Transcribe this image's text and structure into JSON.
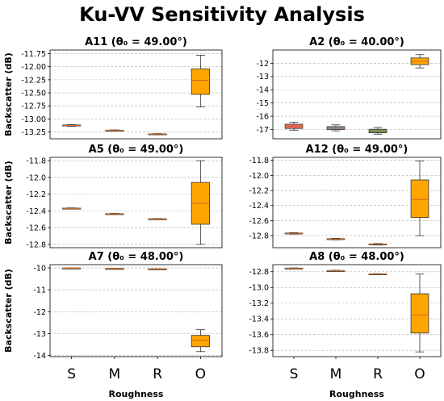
{
  "title": "Ku-VV Sensitivity Analysis",
  "colors": {
    "orange": "#FFA500",
    "red": "#E8676A",
    "blue": "#7091C9",
    "green": "#5E9D6A",
    "median_line": "#D2691E",
    "grid": "#B0B0B0"
  },
  "chart_data": [
    {
      "type": "box",
      "title": "A11 (θ₀ = 49.00°)",
      "ylabel": "Backscatter (dB)",
      "xlabel": "",
      "categories": [
        "S",
        "M",
        "R",
        "O"
      ],
      "ylim": [
        -13.38,
        -11.68
      ],
      "yticks": [
        -13.25,
        -13.0,
        -12.75,
        -12.5,
        -12.25,
        -12.0,
        -11.75
      ],
      "ytick_labels": [
        "-13.25",
        "-13.00",
        "-12.75",
        "-12.50",
        "-12.25",
        "-12.00",
        "-11.75"
      ],
      "show_xticks": false,
      "grid": "y-dashed",
      "boxes": [
        {
          "category": "S",
          "whislo": -13.14,
          "q1": -13.135,
          "med": -13.125,
          "q3": -13.115,
          "whishi": -13.11,
          "color": "#FFA500"
        },
        {
          "category": "M",
          "whislo": -13.23,
          "q1": -13.225,
          "med": -13.22,
          "q3": -13.215,
          "whishi": -13.21,
          "color": "#FFA500"
        },
        {
          "category": "R",
          "whislo": -13.3,
          "q1": -13.295,
          "med": -13.29,
          "q3": -13.285,
          "whishi": -13.28,
          "color": "#FFA500"
        },
        {
          "category": "O",
          "whislo": -12.77,
          "q1": -12.53,
          "med": -12.26,
          "q3": -12.04,
          "whishi": -11.78,
          "color": "#FFA500"
        }
      ]
    },
    {
      "type": "box",
      "title": "A2 (θ₀ = 40.00°)",
      "ylabel": "",
      "xlabel": "",
      "categories": [
        "S",
        "M",
        "R",
        "O"
      ],
      "ylim": [
        -17.7,
        -11.0
      ],
      "yticks": [
        -17,
        -16,
        -15,
        -14,
        -13,
        -12
      ],
      "ytick_labels": [
        "-17",
        "-16",
        "-15",
        "-14",
        "-13",
        "-12"
      ],
      "show_xticks": false,
      "grid": "y-dashed",
      "boxes": [
        {
          "category": "S",
          "whislo": -17.05,
          "q1": -16.92,
          "med": -16.75,
          "q3": -16.6,
          "whishi": -16.45,
          "color": "#E8676A"
        },
        {
          "category": "M",
          "whislo": -17.1,
          "q1": -17.0,
          "med": -16.9,
          "q3": -16.78,
          "whishi": -16.65,
          "color": "#7091C9"
        },
        {
          "category": "R",
          "whislo": -17.35,
          "q1": -17.25,
          "med": -17.1,
          "q3": -16.98,
          "whishi": -16.85,
          "color": "#5E9D6A"
        },
        {
          "category": "O",
          "whislo": -12.35,
          "q1": -12.1,
          "med": -11.85,
          "q3": -11.6,
          "whishi": -11.35,
          "color": "#FFA500"
        }
      ]
    },
    {
      "type": "box",
      "title": "A5 (θ₀ = 49.00°)",
      "ylabel": "Backscatter (dB)",
      "xlabel": "",
      "categories": [
        "S",
        "M",
        "R",
        "O"
      ],
      "ylim": [
        -12.84,
        -11.76
      ],
      "yticks": [
        -12.8,
        -12.6,
        -12.4,
        -12.2,
        -12.0,
        -11.8
      ],
      "ytick_labels": [
        "-12.8",
        "-12.6",
        "-12.4",
        "-12.2",
        "-12.0",
        "-11.8"
      ],
      "show_xticks": false,
      "grid": "y-dashed",
      "boxes": [
        {
          "category": "S",
          "whislo": -12.378,
          "q1": -12.375,
          "med": -12.371,
          "q3": -12.367,
          "whishi": -12.364,
          "color": "#FFA500"
        },
        {
          "category": "M",
          "whislo": -12.442,
          "q1": -12.439,
          "med": -12.436,
          "q3": -12.433,
          "whishi": -12.43,
          "color": "#FFA500"
        },
        {
          "category": "R",
          "whislo": -12.503,
          "q1": -12.5,
          "med": -12.497,
          "q3": -12.494,
          "whishi": -12.491,
          "color": "#FFA500"
        },
        {
          "category": "O",
          "whislo": -12.8,
          "q1": -12.56,
          "med": -12.31,
          "q3": -12.06,
          "whishi": -11.8,
          "color": "#FFA500"
        }
      ]
    },
    {
      "type": "box",
      "title": "A12 (θ₀ = 49.00°)",
      "ylabel": "",
      "xlabel": "",
      "categories": [
        "S",
        "M",
        "R",
        "O"
      ],
      "ylim": [
        -12.96,
        -11.76
      ],
      "yticks": [
        -12.8,
        -12.6,
        -12.4,
        -12.2,
        -12.0,
        -11.8
      ],
      "ytick_labels": [
        "-12.8",
        "-12.6",
        "-12.4",
        "-12.2",
        "-12.0",
        "-11.8"
      ],
      "show_xticks": false,
      "grid": "y-dashed",
      "boxes": [
        {
          "category": "S",
          "whislo": -12.78,
          "q1": -12.775,
          "med": -12.77,
          "q3": -12.765,
          "whishi": -12.76,
          "color": "#FFA500"
        },
        {
          "category": "M",
          "whislo": -12.855,
          "q1": -12.85,
          "med": -12.845,
          "q3": -12.84,
          "whishi": -12.835,
          "color": "#FFA500"
        },
        {
          "category": "R",
          "whislo": -12.925,
          "q1": -12.92,
          "med": -12.915,
          "q3": -12.91,
          "whishi": -12.905,
          "color": "#FFA500"
        },
        {
          "category": "O",
          "whislo": -12.8,
          "q1": -12.56,
          "med": -12.32,
          "q3": -12.06,
          "whishi": -11.81,
          "color": "#FFA500"
        }
      ]
    },
    {
      "type": "box",
      "title": "A7 (θ₀ = 48.00°)",
      "ylabel": "Backscatter (dB)",
      "xlabel": "Roughness",
      "categories": [
        "S",
        "M",
        "R",
        "O"
      ],
      "ylim": [
        -14.05,
        -9.85
      ],
      "yticks": [
        -14,
        -13,
        -12,
        -11,
        -10
      ],
      "ytick_labels": [
        "-14",
        "-13",
        "-12",
        "-11",
        "-10"
      ],
      "show_xticks": true,
      "grid": "y-dashed",
      "boxes": [
        {
          "category": "S",
          "whislo": -10.01,
          "q1": -10.008,
          "med": -10.005,
          "q3": -10.002,
          "whishi": -10.0,
          "color": "#FFA500"
        },
        {
          "category": "M",
          "whislo": -10.03,
          "q1": -10.028,
          "med": -10.025,
          "q3": -10.022,
          "whishi": -10.02,
          "color": "#FFA500"
        },
        {
          "category": "R",
          "whislo": -10.05,
          "q1": -10.048,
          "med": -10.045,
          "q3": -10.042,
          "whishi": -10.04,
          "color": "#FFA500"
        },
        {
          "category": "O",
          "whislo": -13.82,
          "q1": -13.6,
          "med": -13.3,
          "q3": -13.08,
          "whishi": -12.82,
          "color": "#FFA500"
        }
      ]
    },
    {
      "type": "box",
      "title": "A8 (θ₀ = 48.00°)",
      "ylabel": "",
      "xlabel": "Roughness",
      "categories": [
        "S",
        "M",
        "R",
        "O"
      ],
      "ylim": [
        -13.88,
        -12.71
      ],
      "yticks": [
        -13.8,
        -13.6,
        -13.4,
        -13.2,
        -13.0,
        -12.8
      ],
      "ytick_labels": [
        "-13.8",
        "-13.6",
        "-13.4",
        "-13.2",
        "-13.0",
        "-12.8"
      ],
      "show_xticks": true,
      "grid": "y-dashed",
      "boxes": [
        {
          "category": "S",
          "whislo": -12.762,
          "q1": -12.76,
          "med": -12.757,
          "q3": -12.754,
          "whishi": -12.752,
          "color": "#FFA500"
        },
        {
          "category": "M",
          "whislo": -12.792,
          "q1": -12.79,
          "med": -12.787,
          "q3": -12.784,
          "whishi": -12.782,
          "color": "#FFA500"
        },
        {
          "category": "R",
          "whislo": -12.835,
          "q1": -12.833,
          "med": -12.83,
          "q3": -12.827,
          "whishi": -12.825,
          "color": "#FFA500"
        },
        {
          "category": "O",
          "whislo": -13.82,
          "q1": -13.58,
          "med": -13.35,
          "q3": -13.08,
          "whishi": -12.83,
          "color": "#FFA500"
        }
      ]
    }
  ]
}
